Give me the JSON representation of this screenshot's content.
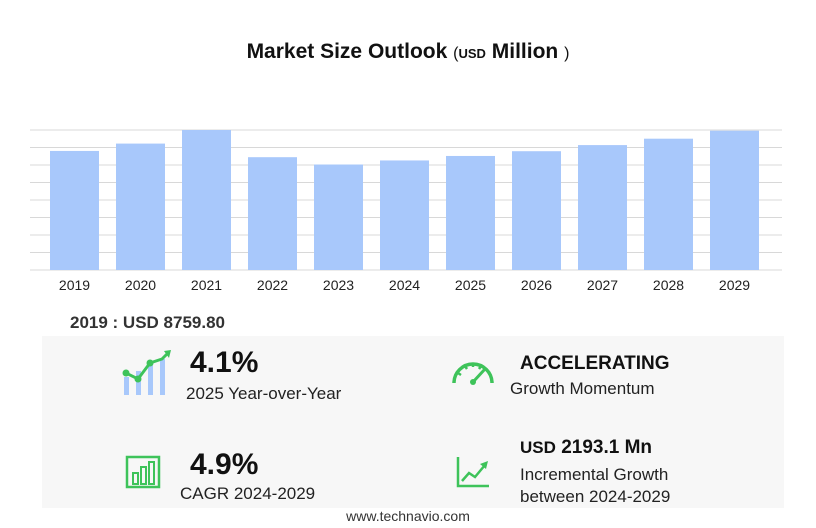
{
  "header": {
    "title": "Market Size Outlook",
    "unit_open": "(",
    "unit_currency": "USD",
    "unit_scale": "Million",
    "unit_close": ")"
  },
  "chart_data": {
    "type": "bar",
    "categories": [
      "2019",
      "2020",
      "2021",
      "2022",
      "2023",
      "2024",
      "2025",
      "2026",
      "2027",
      "2028",
      "2029"
    ],
    "values": [
      8759.8,
      9300,
      10300,
      8300,
      7760,
      8060,
      8390,
      8740,
      9190,
      9660,
      10250
    ],
    "ylim": [
      0,
      10300
    ],
    "grid": true,
    "bar_color": "#a8c8fb"
  },
  "baseline": {
    "label": "2019 : USD  8759.80"
  },
  "kpis": {
    "yoy": {
      "value": "4.1%",
      "label": "2025 Year-over-Year"
    },
    "momentum": {
      "value": "ACCELERATING",
      "label": "Growth Momentum"
    },
    "cagr": {
      "value": "4.9%",
      "label": "CAGR 2024-2029"
    },
    "incremental": {
      "currency": "USD",
      "value": "2193.1 Mn",
      "label_line1": "Incremental Growth",
      "label_line2": "between 2024-2029"
    }
  },
  "colors": {
    "accent_green": "#3ec35a",
    "bar": "#a8c8fb",
    "grid": "#d8d8d8"
  },
  "footer": {
    "source": "www.technavio.com"
  }
}
